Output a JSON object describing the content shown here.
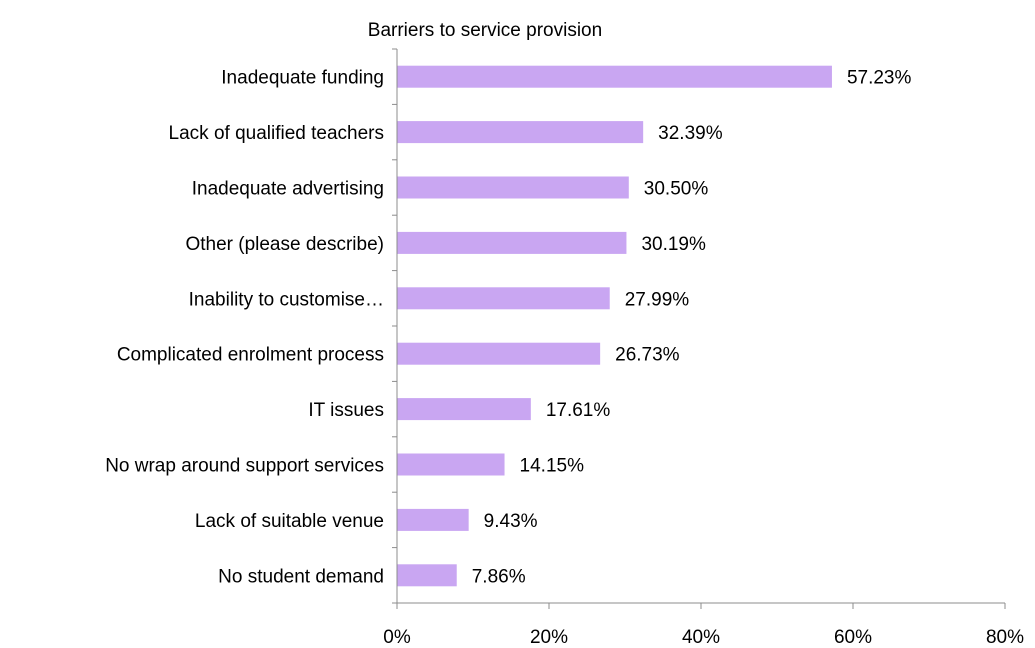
{
  "chart_data": {
    "type": "bar",
    "orientation": "horizontal",
    "title": "Barriers to service provision",
    "xlabel": "",
    "ylabel": "",
    "categories": [
      "Inadequate funding",
      "Lack of qualified teachers",
      "Inadequate advertising",
      "Other (please describe)",
      "Inability to customise…",
      "Complicated enrolment process",
      "IT issues",
      "No wrap around support services",
      "Lack of suitable venue",
      "No student demand"
    ],
    "values": [
      57.23,
      32.39,
      30.5,
      30.19,
      27.99,
      26.73,
      17.61,
      14.15,
      9.43,
      7.86
    ],
    "value_labels": [
      "57.23%",
      "32.39%",
      "30.50%",
      "30.19%",
      "27.99%",
      "26.73%",
      "17.61%",
      "14.15%",
      "9.43%",
      "7.86%"
    ],
    "xlim": [
      0,
      80
    ],
    "x_ticks": [
      "0%",
      "20%",
      "40%",
      "60%",
      "80%"
    ],
    "bar_color": "#c9a6f2",
    "grid": false,
    "legend": "none"
  }
}
